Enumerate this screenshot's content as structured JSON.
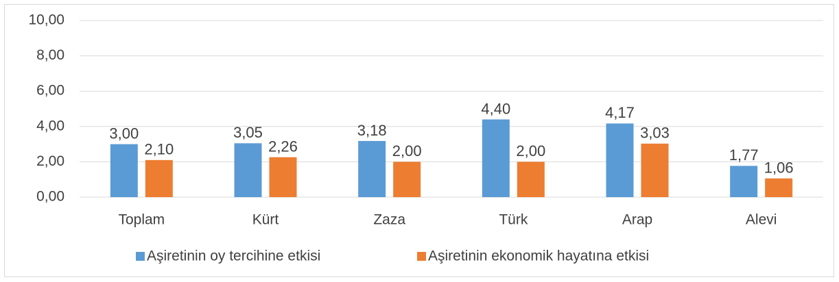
{
  "chart_data": {
    "type": "bar",
    "categories": [
      "Toplam",
      "Kürt",
      "Zaza",
      "Türk",
      "Arap",
      "Alevi"
    ],
    "series": [
      {
        "name": "Aşiretinin oy tercihine etkisi",
        "color": "#5b9bd5",
        "values": [
          3.0,
          3.05,
          3.18,
          4.4,
          4.17,
          1.77
        ],
        "value_labels": [
          "3,00",
          "3,05",
          "3,18",
          "4,40",
          "4,17",
          "1,77"
        ]
      },
      {
        "name": "Aşiretinin ekonomik hayatına etkisi",
        "color": "#ed7d31",
        "values": [
          2.1,
          2.26,
          2.0,
          2.0,
          3.03,
          1.06
        ],
        "value_labels": [
          "2,10",
          "2,26",
          "2,00",
          "2,00",
          "3,03",
          "1,06"
        ]
      }
    ],
    "ylim": [
      0,
      10
    ],
    "yticks": [
      {
        "value": 0,
        "label": "0,00"
      },
      {
        "value": 2,
        "label": "2,00"
      },
      {
        "value": 4,
        "label": "4,00"
      },
      {
        "value": 6,
        "label": "6,00"
      },
      {
        "value": 8,
        "label": "8,00"
      },
      {
        "value": 10,
        "label": "10,00"
      }
    ],
    "grid": true,
    "legend": "bottom"
  }
}
